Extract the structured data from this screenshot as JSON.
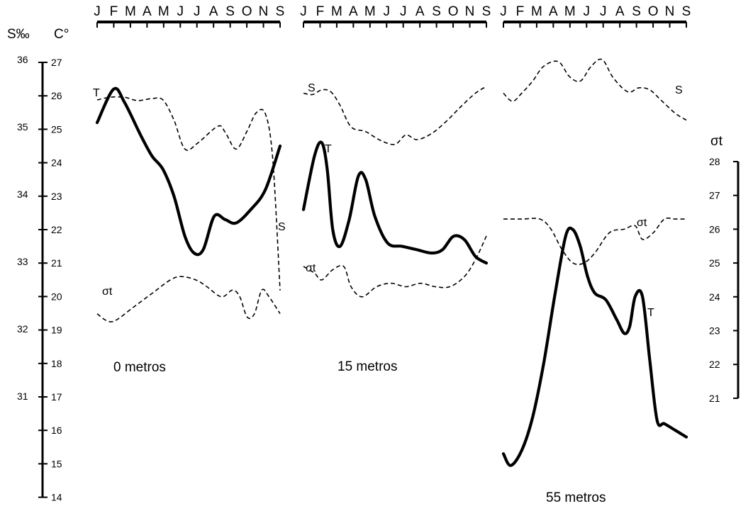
{
  "chart_data": {
    "type": "line",
    "axes": {
      "salinity": {
        "label": "S‰",
        "ticks": [
          "36",
          "35",
          "34",
          "33",
          "32",
          "31"
        ],
        "range": [
          31,
          36
        ]
      },
      "temperature": {
        "label": "C°",
        "ticks": [
          "27",
          "26",
          "25",
          "24",
          "23",
          "22",
          "21",
          "20",
          "19",
          "18",
          "17",
          "16",
          "15",
          "14"
        ],
        "range": [
          14,
          27
        ]
      },
      "sigma_t": {
        "label": "σt",
        "ticks": [
          "28",
          "27",
          "26",
          "25",
          "24",
          "23",
          "22",
          "21"
        ],
        "range": [
          21,
          28
        ]
      }
    },
    "months": [
      "J",
      "F",
      "M",
      "A",
      "M",
      "J",
      "J",
      "A",
      "S",
      "O",
      "N",
      "S"
    ],
    "panels": [
      {
        "caption": "0 metros",
        "labels": {
          "temperature": "T",
          "salinity": "S",
          "sigma": "σt"
        },
        "temperature": [
          [
            0,
            25.2
          ],
          [
            0.9,
            26.2
          ],
          [
            1.5,
            25.8
          ],
          [
            2.4,
            24.8
          ],
          [
            3.0,
            24.2
          ],
          [
            3.6,
            23.8
          ],
          [
            4.2,
            23.0
          ],
          [
            4.8,
            21.8
          ],
          [
            5.3,
            21.3
          ],
          [
            5.8,
            21.4
          ],
          [
            6.4,
            22.4
          ],
          [
            7.0,
            22.3
          ],
          [
            7.6,
            22.2
          ],
          [
            8.4,
            22.6
          ],
          [
            9.2,
            23.2
          ],
          [
            10.0,
            24.5
          ]
        ],
        "salinity": [
          [
            0,
            35.4
          ],
          [
            0.7,
            35.44
          ],
          [
            1.5,
            35.44
          ],
          [
            2.2,
            35.39
          ],
          [
            3.0,
            35.42
          ],
          [
            3.6,
            35.4
          ],
          [
            4.2,
            35.1
          ],
          [
            4.8,
            34.67
          ],
          [
            5.5,
            34.76
          ],
          [
            6.6,
            35.01
          ],
          [
            7.0,
            34.92
          ],
          [
            7.6,
            34.67
          ],
          [
            8.2,
            34.94
          ],
          [
            8.7,
            35.21
          ],
          [
            9.2,
            35.19
          ],
          [
            9.6,
            34.52
          ],
          [
            10.0,
            32.57
          ]
        ],
        "sigma_t": [
          [
            0,
            23.5
          ],
          [
            0.5,
            23.3
          ],
          [
            1.0,
            23.3
          ],
          [
            2.0,
            23.7
          ],
          [
            3.0,
            24.1
          ],
          [
            4.0,
            24.5
          ],
          [
            4.6,
            24.6
          ],
          [
            5.4,
            24.5
          ],
          [
            6.0,
            24.3
          ],
          [
            6.8,
            24.0
          ],
          [
            7.4,
            24.2
          ],
          [
            7.8,
            24.0
          ],
          [
            8.2,
            23.4
          ],
          [
            8.6,
            23.5
          ],
          [
            9.0,
            24.2
          ],
          [
            9.4,
            24.0
          ],
          [
            10.0,
            23.5
          ]
        ]
      },
      {
        "caption": "15 metros",
        "labels": {
          "temperature": "T",
          "salinity": "S",
          "sigma": "σt"
        },
        "temperature": [
          [
            0,
            22.6
          ],
          [
            0.6,
            24.2
          ],
          [
            1.0,
            24.6
          ],
          [
            1.3,
            23.8
          ],
          [
            1.6,
            22.0
          ],
          [
            2.0,
            21.5
          ],
          [
            2.5,
            22.3
          ],
          [
            3.0,
            23.6
          ],
          [
            3.4,
            23.5
          ],
          [
            3.9,
            22.4
          ],
          [
            4.6,
            21.6
          ],
          [
            5.4,
            21.5
          ],
          [
            6.2,
            21.4
          ],
          [
            7.0,
            21.3
          ],
          [
            7.6,
            21.4
          ],
          [
            8.2,
            21.8
          ],
          [
            8.8,
            21.7
          ],
          [
            9.4,
            21.2
          ],
          [
            10.0,
            21.0
          ]
        ],
        "salinity": [
          [
            0,
            35.5
          ],
          [
            0.5,
            35.48
          ],
          [
            1.0,
            35.55
          ],
          [
            1.5,
            35.52
          ],
          [
            2.0,
            35.32
          ],
          [
            2.6,
            35.0
          ],
          [
            3.4,
            34.93
          ],
          [
            4.2,
            34.8
          ],
          [
            5.0,
            34.74
          ],
          [
            5.6,
            34.88
          ],
          [
            6.2,
            34.81
          ],
          [
            7.0,
            34.9
          ],
          [
            7.8,
            35.08
          ],
          [
            8.6,
            35.3
          ],
          [
            9.4,
            35.5
          ],
          [
            10.0,
            35.6
          ]
        ],
        "sigma_t": [
          [
            0,
            24.9
          ],
          [
            0.6,
            24.7
          ],
          [
            1.0,
            24.5
          ],
          [
            1.6,
            24.8
          ],
          [
            2.2,
            24.9
          ],
          [
            2.6,
            24.3
          ],
          [
            3.2,
            24.0
          ],
          [
            4.0,
            24.3
          ],
          [
            4.8,
            24.4
          ],
          [
            5.6,
            24.3
          ],
          [
            6.4,
            24.4
          ],
          [
            7.2,
            24.3
          ],
          [
            8.0,
            24.3
          ],
          [
            8.8,
            24.6
          ],
          [
            9.4,
            25.1
          ],
          [
            10.0,
            25.8
          ]
        ]
      },
      {
        "caption": "55 metros",
        "labels": {
          "temperature": "T",
          "salinity": "S",
          "sigma": "σt"
        },
        "temperature": [
          [
            0,
            15.3
          ],
          [
            0.4,
            14.95
          ],
          [
            1.0,
            15.4
          ],
          [
            1.6,
            16.4
          ],
          [
            2.2,
            18.0
          ],
          [
            2.8,
            20.0
          ],
          [
            3.4,
            21.8
          ],
          [
            3.8,
            22.0
          ],
          [
            4.2,
            21.5
          ],
          [
            4.6,
            20.6
          ],
          [
            5.0,
            20.1
          ],
          [
            5.6,
            19.9
          ],
          [
            6.2,
            19.3
          ],
          [
            6.6,
            18.9
          ],
          [
            6.9,
            19.1
          ],
          [
            7.2,
            20.0
          ],
          [
            7.6,
            20.0
          ],
          [
            8.0,
            18.1
          ],
          [
            8.4,
            16.3
          ],
          [
            8.8,
            16.2
          ],
          [
            9.4,
            16.0
          ],
          [
            10.0,
            15.8
          ]
        ],
        "salinity": [
          [
            0,
            35.5
          ],
          [
            0.5,
            35.38
          ],
          [
            1.0,
            35.5
          ],
          [
            1.6,
            35.68
          ],
          [
            2.2,
            35.9
          ],
          [
            3.0,
            35.97
          ],
          [
            3.6,
            35.75
          ],
          [
            4.2,
            35.68
          ],
          [
            4.8,
            35.9
          ],
          [
            5.4,
            36.0
          ],
          [
            6.0,
            35.73
          ],
          [
            6.8,
            35.52
          ],
          [
            7.4,
            35.58
          ],
          [
            8.0,
            35.55
          ],
          [
            8.6,
            35.4
          ],
          [
            9.4,
            35.2
          ],
          [
            10.0,
            35.1
          ]
        ],
        "sigma_t": [
          [
            0,
            26.3
          ],
          [
            1.0,
            26.3
          ],
          [
            2.0,
            26.3
          ],
          [
            2.6,
            26.0
          ],
          [
            3.2,
            25.4
          ],
          [
            3.8,
            25.0
          ],
          [
            4.4,
            25.0
          ],
          [
            5.0,
            25.3
          ],
          [
            5.8,
            25.9
          ],
          [
            6.6,
            26.0
          ],
          [
            7.2,
            26.1
          ],
          [
            7.6,
            25.7
          ],
          [
            8.2,
            25.9
          ],
          [
            8.8,
            26.3
          ],
          [
            9.4,
            26.3
          ],
          [
            10.0,
            26.3
          ]
        ]
      }
    ]
  }
}
